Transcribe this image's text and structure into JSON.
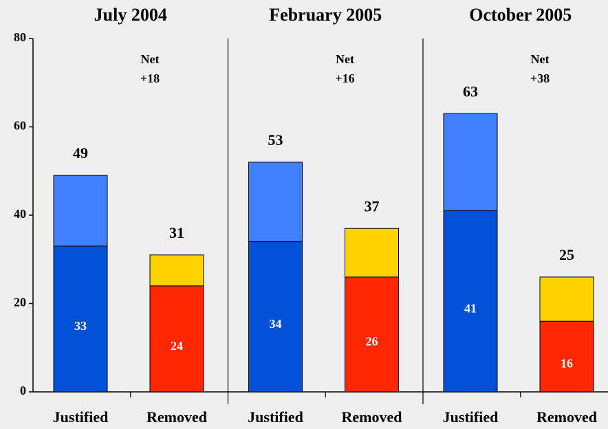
{
  "chart_data": {
    "type": "bar",
    "stacked": true,
    "panels": [
      "July 2004",
      "February 2005",
      "October 2005"
    ],
    "net": {
      "title": "Net",
      "values": [
        "+18",
        "+16",
        "+38"
      ]
    },
    "bars": [
      {
        "name": "Justified",
        "totals": [
          49,
          53,
          63
        ],
        "segments": [
          {
            "color": "#0050d8",
            "values": [
              33,
              34,
              41
            ]
          },
          {
            "color": "#4080ff",
            "values": [
              16,
              18,
              22
            ]
          }
        ]
      },
      {
        "name": "Removed",
        "totals": [
          31,
          37,
          25
        ],
        "segments": [
          {
            "color": "#ff2800",
            "values": [
              24,
              26,
              16
            ]
          },
          {
            "color": "#ffd200",
            "values": [
              7,
              11,
              10
            ]
          }
        ]
      }
    ],
    "ylim": [
      0,
      80
    ],
    "yticks": [
      0,
      20,
      40,
      60,
      80
    ]
  }
}
